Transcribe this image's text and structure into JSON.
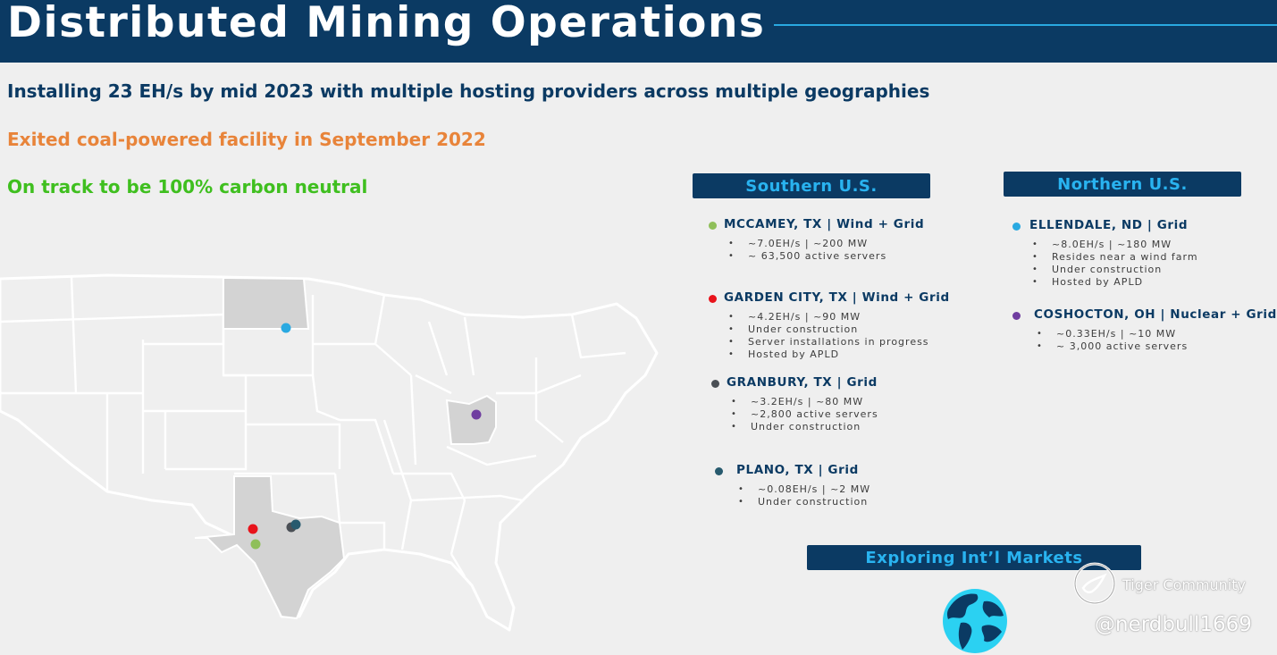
{
  "header": {
    "title": "Distributed Mining Operations"
  },
  "subtitles": {
    "line1": "Installing 23 EH/s by mid 2023 with multiple hosting providers across multiple geographies",
    "line2": "Exited coal-powered facility in September 2022",
    "line3": "On track to be 100% carbon neutral"
  },
  "regions": {
    "southern": "Southern U.S.",
    "northern": "Northern U.S.",
    "intl": "Exploring Int’l Markets"
  },
  "sites": [
    {
      "name": "MCCAMEY, TX | Wind + Grid",
      "color": "#8fbf5a",
      "bullets": [
        "~7.0EH/s | ~200 MW",
        "~ 63,500 active servers"
      ]
    },
    {
      "name": "GARDEN CITY, TX | Wind + Grid",
      "color": "#e8131b",
      "bullets": [
        "~4.2EH/s | ~90 MW",
        "Under construction",
        "Server installations in progress",
        "Hosted by APLD"
      ]
    },
    {
      "name": "GRANBURY, TX | Grid",
      "color": "#4a4f55",
      "bullets": [
        "~3.2EH/s | ~80 MW",
        "~2,800 active servers",
        "Under construction"
      ]
    },
    {
      "name": "PLANO, TX | Grid",
      "color": "#275a6e",
      "bullets": [
        "~0.08EH/s | ~2 MW",
        "Under construction"
      ]
    },
    {
      "name": "ELLENDALE, ND | Grid",
      "color": "#29a9e1",
      "bullets": [
        "~8.0EH/s | ~180 MW",
        "Resides near a wind farm",
        "Under construction",
        "Hosted by APLD"
      ]
    },
    {
      "name": "COSHOCTON, OH | Nuclear + Grid",
      "color": "#6f3da0",
      "bullets": [
        "~0.33EH/s | ~10 MW",
        "~ 3,000 active servers"
      ]
    }
  ],
  "colors": {
    "navy": "#0b3a63",
    "accent": "#29a9e1",
    "orange": "#e8843a",
    "green": "#3fbf1f",
    "map_fill": "#d3d3d3"
  },
  "icons": {
    "globe": "globe-icon",
    "map": "us-map"
  },
  "watermark": {
    "brand": "Tiger Community",
    "handle": "@nerdbull1669"
  }
}
